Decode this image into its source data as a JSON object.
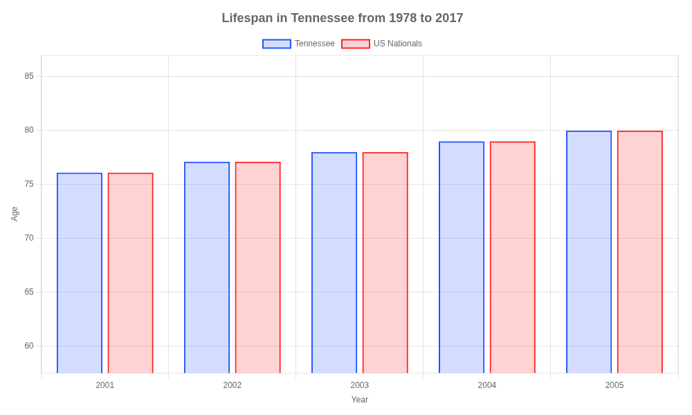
{
  "chart_data": {
    "type": "bar",
    "title": "Lifespan in Tennessee from 1978 to 2017",
    "xlabel": "Year",
    "ylabel": "Age",
    "categories": [
      "2001",
      "2002",
      "2003",
      "2004",
      "2005"
    ],
    "series": [
      {
        "name": "Tennessee",
        "color": "#2255ff",
        "values": [
          76.1,
          77.1,
          78.0,
          79.0,
          80.0
        ]
      },
      {
        "name": "US Nationals",
        "color": "#ff2222",
        "values": [
          76.1,
          77.1,
          78.0,
          79.0,
          80.0
        ]
      }
    ],
    "ylim": [
      57.5,
      87
    ],
    "yticks": [
      60,
      65,
      70,
      75,
      80,
      85
    ],
    "grid": true,
    "legend": "top"
  }
}
